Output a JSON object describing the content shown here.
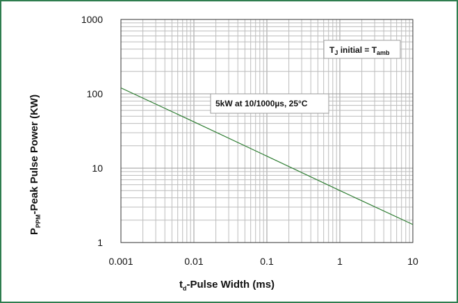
{
  "chart_data": {
    "type": "line",
    "title": "",
    "xscale": "log",
    "yscale": "log",
    "xlim": [
      0.001,
      10
    ],
    "ylim": [
      1,
      1000
    ],
    "x_ticks": [
      "0.001",
      "0.01",
      "0.1",
      "1",
      "10"
    ],
    "y_ticks": [
      "1",
      "10",
      "100",
      "1000"
    ],
    "xlabel": {
      "main": "t",
      "sub": "d",
      "rest": "-Pulse Width (ms)"
    },
    "ylabel": {
      "main": "P",
      "sub": "PPM",
      "rest": "-Peak Pulse Power (KW)"
    },
    "grid": true,
    "series": [
      {
        "color": "#2e7d32",
        "x": [
          0.001,
          0.01,
          0.1,
          1,
          10
        ],
        "y": [
          120,
          42,
          14.5,
          5,
          1.75
        ]
      }
    ],
    "annotations": {
      "tj": {
        "pre": "T",
        "sub1": "J",
        "mid": " initial = T",
        "sub2": "amb"
      },
      "rating": "5kW at 10/1000µs, 25°C"
    }
  }
}
